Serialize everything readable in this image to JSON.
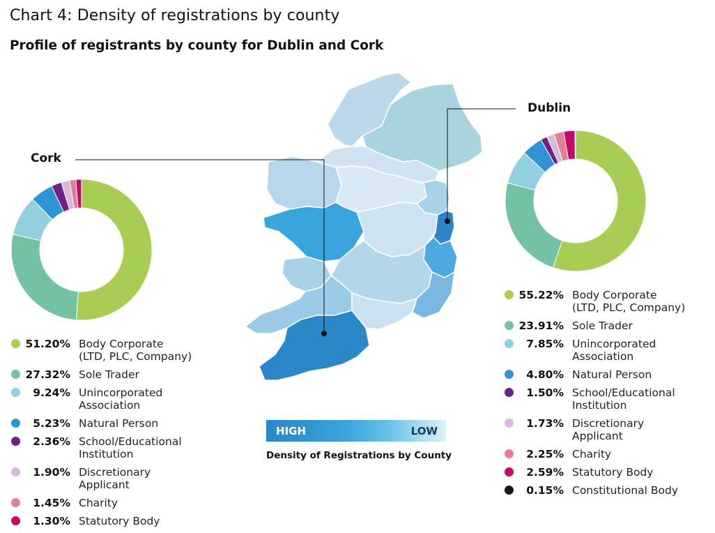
{
  "title": "Chart 4: Density of registrations by county",
  "subtitle": "Profile of registrants by county for Dublin and Cork",
  "scale": {
    "high_label": "HIGH",
    "low_label": "LOW",
    "caption": "Density of Registrations by County"
  },
  "colors": {
    "body_corporate": "#a9cd54",
    "sole_trader": "#74c1a6",
    "unincorporated": "#93d0de",
    "natural_person": "#3193d6",
    "school": "#6c2385",
    "discretionary": "#d7b9db",
    "charity": "#e17f97",
    "statutory": "#c40968",
    "constitutional": "#1a1a1a"
  },
  "chart_data": [
    {
      "type": "pie",
      "name": "Cork",
      "categories": [
        "Body Corporate (LTD, PLC, Company)",
        "Sole Trader",
        "Unincorporated Association",
        "Natural Person",
        "School/Educational Institution",
        "Discretionary Applicant",
        "Charity",
        "Statutory Body"
      ],
      "values": [
        51.2,
        27.32,
        9.24,
        5.23,
        2.36,
        1.9,
        1.45,
        1.3
      ],
      "legend": [
        {
          "pct": "51.20%",
          "line1": "Body Corporate",
          "line2": "(LTD, PLC, Company)",
          "color": "#a9cd54"
        },
        {
          "pct": "27.32%",
          "line1": "Sole Trader",
          "line2": "",
          "color": "#74c1a6"
        },
        {
          "pct": "9.24%",
          "line1": "Unincorporated",
          "line2": "Association",
          "color": "#93d0de"
        },
        {
          "pct": "5.23%",
          "line1": "Natural Person",
          "line2": "",
          "color": "#3193d6"
        },
        {
          "pct": "2.36%",
          "line1": "School/Educational",
          "line2": "Institution",
          "color": "#6c2385"
        },
        {
          "pct": "1.90%",
          "line1": "Discretionary Applicant",
          "line2": "",
          "color": "#d7b9db"
        },
        {
          "pct": "1.45%",
          "line1": "Charity",
          "line2": "",
          "color": "#e17f97"
        },
        {
          "pct": "1.30%",
          "line1": "Statutory Body",
          "line2": "",
          "color": "#c40968"
        }
      ]
    },
    {
      "type": "pie",
      "name": "Dublin",
      "categories": [
        "Body Corporate (LTD, PLC, Company)",
        "Sole Trader",
        "Unincorporated Association",
        "Natural Person",
        "School/Educational Institution",
        "Discretionary Applicant",
        "Charity",
        "Statutory Body",
        "Constitutional Body"
      ],
      "values": [
        55.22,
        23.91,
        7.85,
        4.8,
        1.5,
        1.73,
        2.25,
        2.59,
        0.15
      ],
      "legend": [
        {
          "pct": "55.22%",
          "line1": "Body Corporate",
          "line2": "(LTD, PLC, Company)",
          "color": "#a9cd54"
        },
        {
          "pct": "23.91%",
          "line1": "Sole Trader",
          "line2": "",
          "color": "#74c1a6"
        },
        {
          "pct": "7.85%",
          "line1": "Unincorporated",
          "line2": "Association",
          "color": "#93d0de"
        },
        {
          "pct": "4.80%",
          "line1": "Natural Person",
          "line2": "",
          "color": "#3193d6"
        },
        {
          "pct": "1.50%",
          "line1": "School/Educational",
          "line2": "Institution",
          "color": "#6c2385"
        },
        {
          "pct": "1.73%",
          "line1": "Discretionary Applicant",
          "line2": "",
          "color": "#d7b9db"
        },
        {
          "pct": "2.25%",
          "line1": "Charity",
          "line2": "",
          "color": "#e17f97"
        },
        {
          "pct": "2.59%",
          "line1": "Statutory Body",
          "line2": "",
          "color": "#c40968"
        },
        {
          "pct": "0.15%",
          "line1": "Constitutional Body",
          "line2": "",
          "color": "#1a1a1a"
        }
      ]
    }
  ]
}
